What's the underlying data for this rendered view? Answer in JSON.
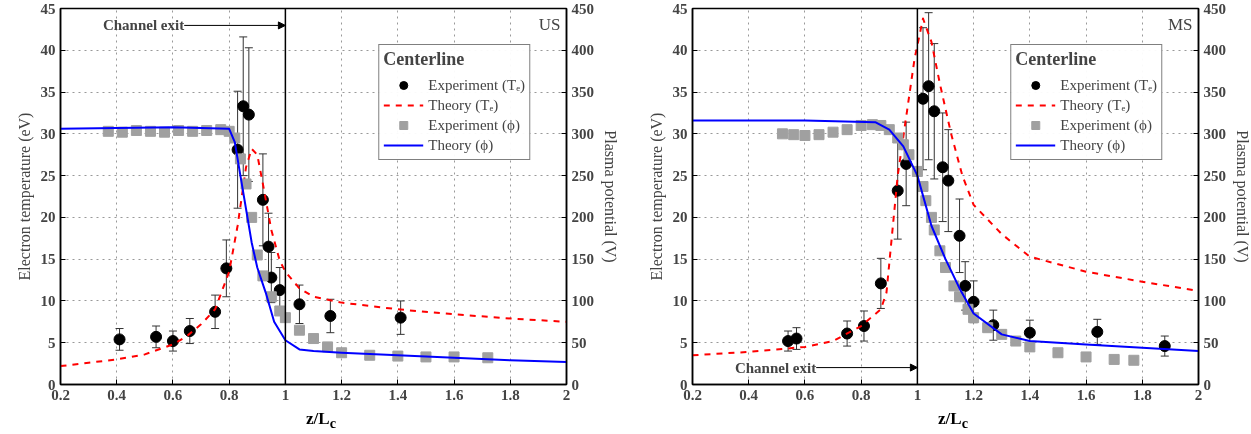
{
  "chart_data": [
    {
      "type": "line",
      "xlabel": "z/L$_{c}$",
      "ylabel": "Electron temperature (eV)",
      "y2label": "Plasma potential (V)",
      "legend_title": "Centerline",
      "legend": "top right",
      "grid": true,
      "xlim": [
        0.2,
        2
      ],
      "xticks": [
        0.2,
        0.4,
        0.6,
        0.8,
        1,
        1.2,
        1.4,
        1.6,
        1.8,
        2
      ],
      "ylim": [
        0,
        45
      ],
      "yticks": [
        0,
        5,
        10,
        15,
        20,
        25,
        30,
        35,
        40,
        45
      ],
      "y2lim": [
        0,
        450
      ],
      "y2ticks": [
        0,
        50,
        100,
        150,
        200,
        250,
        300,
        350,
        400,
        450
      ],
      "ref_lines": [
        {
          "axis": "x",
          "value": 1,
          "label": "Channel exit",
          "color": "#000000"
        }
      ],
      "annotations": [
        "US"
      ],
      "series": [
        {
          "name": "Experiment (Tₑ)",
          "type": "scatter",
          "marker": "circle",
          "color": "#000000",
          "x": [
            0.41,
            0.54,
            0.6,
            0.66,
            0.75,
            0.79,
            0.83,
            0.85,
            0.87,
            0.92,
            0.94,
            0.95,
            0.98,
            1.05,
            1.16,
            1.41
          ],
          "values": [
            5.4,
            5.7,
            5.2,
            6.4,
            8.7,
            13.9,
            28.1,
            33.3,
            32.3,
            22.1,
            16.5,
            12.8,
            11.3,
            9.6,
            8.2,
            8.0
          ],
          "errors": [
            1.3,
            1.3,
            1.2,
            1.5,
            2.0,
            3.4,
            7,
            8.3,
            8,
            5.5,
            4,
            3,
            2.7,
            2.3,
            2,
            2
          ]
        },
        {
          "name": "Theory (Tₑ)",
          "line_style": "dashed",
          "color": "#ff0000",
          "x": [
            0.2,
            0.3,
            0.4,
            0.5,
            0.6,
            0.65,
            0.7,
            0.75,
            0.8,
            0.83,
            0.86,
            0.88,
            0.9,
            0.92,
            0.95,
            0.98,
            1.0,
            1.05,
            1.1,
            1.2,
            1.4,
            1.6,
            1.8,
            2.0
          ],
          "values": [
            2.2,
            2.6,
            3.0,
            3.6,
            4.8,
            5.8,
            7.2,
            9.0,
            13.5,
            19,
            26,
            28.2,
            27.5,
            24,
            18.5,
            14.8,
            13.5,
            11.5,
            10.5,
            9.8,
            9.0,
            8.4,
            7.9,
            7.5
          ]
        },
        {
          "name": "Experiment (ϕ)",
          "type": "scatter",
          "marker": "square",
          "axis": "y2",
          "color": "#a0a0a0",
          "x": [
            0.37,
            0.42,
            0.47,
            0.52,
            0.57,
            0.62,
            0.67,
            0.72,
            0.77,
            0.8,
            0.82,
            0.84,
            0.86,
            0.88,
            0.9,
            0.92,
            0.95,
            0.98,
            1.0,
            1.05,
            1.1,
            1.15,
            1.2,
            1.3,
            1.4,
            1.5,
            1.6,
            1.72
          ],
          "values": [
            303,
            302,
            304,
            303,
            302,
            304,
            303,
            304,
            305,
            303,
            295,
            270,
            240,
            200,
            155,
            130,
            105,
            88,
            80,
            65,
            55,
            45,
            38,
            35,
            34,
            33,
            33,
            32
          ]
        },
        {
          "name": "Theory (ϕ)",
          "line_style": "solid",
          "axis": "y2",
          "color": "#0000ff",
          "x": [
            0.2,
            0.6,
            0.8,
            0.82,
            0.84,
            0.86,
            0.88,
            0.9,
            0.93,
            0.96,
            1.0,
            1.05,
            1.1,
            1.2,
            1.4,
            1.6,
            1.8,
            2.0
          ],
          "values": [
            306,
            308,
            306,
            290,
            250,
            210,
            170,
            140,
            110,
            75,
            53,
            42,
            40,
            38,
            35,
            32,
            29,
            27
          ]
        }
      ]
    },
    {
      "type": "line",
      "xlabel": "z/L$_{c}$",
      "ylabel": "Electron temperature (eV)",
      "y2label": "Plasma potential (V)",
      "legend_title": "Centerline",
      "legend": "top right",
      "grid": true,
      "xlim": [
        0.2,
        2
      ],
      "xticks": [
        0.2,
        0.4,
        0.6,
        0.8,
        1,
        1.2,
        1.4,
        1.6,
        1.8,
        2
      ],
      "ylim": [
        0,
        45
      ],
      "yticks": [
        0,
        5,
        10,
        15,
        20,
        25,
        30,
        35,
        40,
        45
      ],
      "y2lim": [
        0,
        450
      ],
      "y2ticks": [
        0,
        50,
        100,
        150,
        200,
        250,
        300,
        350,
        400,
        450
      ],
      "ref_lines": [
        {
          "axis": "x",
          "value": 1,
          "label": "Channel exit",
          "color": "#000000"
        }
      ],
      "annotations": [
        "MS"
      ],
      "series": [
        {
          "name": "Experiment (Tₑ)",
          "type": "scatter",
          "marker": "circle",
          "color": "#000000",
          "x": [
            0.54,
            0.57,
            0.75,
            0.81,
            0.87,
            0.93,
            0.96,
            1.02,
            1.04,
            1.06,
            1.09,
            1.11,
            1.15,
            1.17,
            1.2,
            1.27,
            1.4,
            1.64,
            1.88
          ],
          "values": [
            5.2,
            5.5,
            6.1,
            7.0,
            12.1,
            23.2,
            26.4,
            34.2,
            35.7,
            32.7,
            26.0,
            24.4,
            17.8,
            11.8,
            9.9,
            7.1,
            6.2,
            6.3,
            4.6
          ],
          "errors": [
            1.2,
            1.3,
            1.5,
            1.8,
            3,
            5.8,
            5,
            8.5,
            8.8,
            8.1,
            6.5,
            6.1,
            4.4,
            2.9,
            2.5,
            1.8,
            1.5,
            1.5,
            1.2
          ]
        },
        {
          "name": "Theory (Tₑ)",
          "line_style": "dashed",
          "color": "#ff0000",
          "x": [
            0.2,
            0.4,
            0.6,
            0.7,
            0.8,
            0.87,
            0.89,
            0.91,
            0.93,
            0.96,
            0.99,
            1.02,
            1.05,
            1.08,
            1.12,
            1.16,
            1.2,
            1.3,
            1.4,
            1.6,
            1.8,
            2.0
          ],
          "values": [
            3.5,
            3.9,
            4.5,
            5.2,
            7.0,
            9.0,
            11,
            18,
            25,
            32,
            39,
            43.8,
            41,
            36,
            30,
            25,
            21.5,
            18,
            15.3,
            13.5,
            12.3,
            11.2
          ]
        },
        {
          "name": "Experiment (ϕ)",
          "type": "scatter",
          "marker": "square",
          "axis": "y2",
          "color": "#a0a0a0",
          "x": [
            0.52,
            0.56,
            0.6,
            0.65,
            0.7,
            0.75,
            0.8,
            0.84,
            0.87,
            0.9,
            0.93,
            0.95,
            0.97,
            1.0,
            1.02,
            1.03,
            1.05,
            1.06,
            1.08,
            1.1,
            1.13,
            1.15,
            1.18,
            1.2,
            1.25,
            1.3,
            1.35,
            1.4,
            1.5,
            1.6,
            1.7,
            1.77
          ],
          "values": [
            300,
            299,
            298,
            299,
            302,
            305,
            310,
            311,
            310,
            305,
            295,
            287,
            275,
            255,
            237,
            220,
            200,
            185,
            160,
            140,
            118,
            105,
            90,
            80,
            68,
            60,
            52,
            45,
            38,
            33,
            30,
            29
          ]
        },
        {
          "name": "Theory (ϕ)",
          "line_style": "solid",
          "axis": "y2",
          "color": "#0000ff",
          "x": [
            0.2,
            0.6,
            0.85,
            0.9,
            0.95,
            1.0,
            1.05,
            1.1,
            1.15,
            1.2,
            1.3,
            1.4,
            1.6,
            1.8,
            2.0
          ],
          "values": [
            316,
            316,
            314,
            305,
            285,
            250,
            190,
            150,
            115,
            85,
            60,
            52,
            48,
            44,
            40
          ]
        }
      ]
    }
  ]
}
